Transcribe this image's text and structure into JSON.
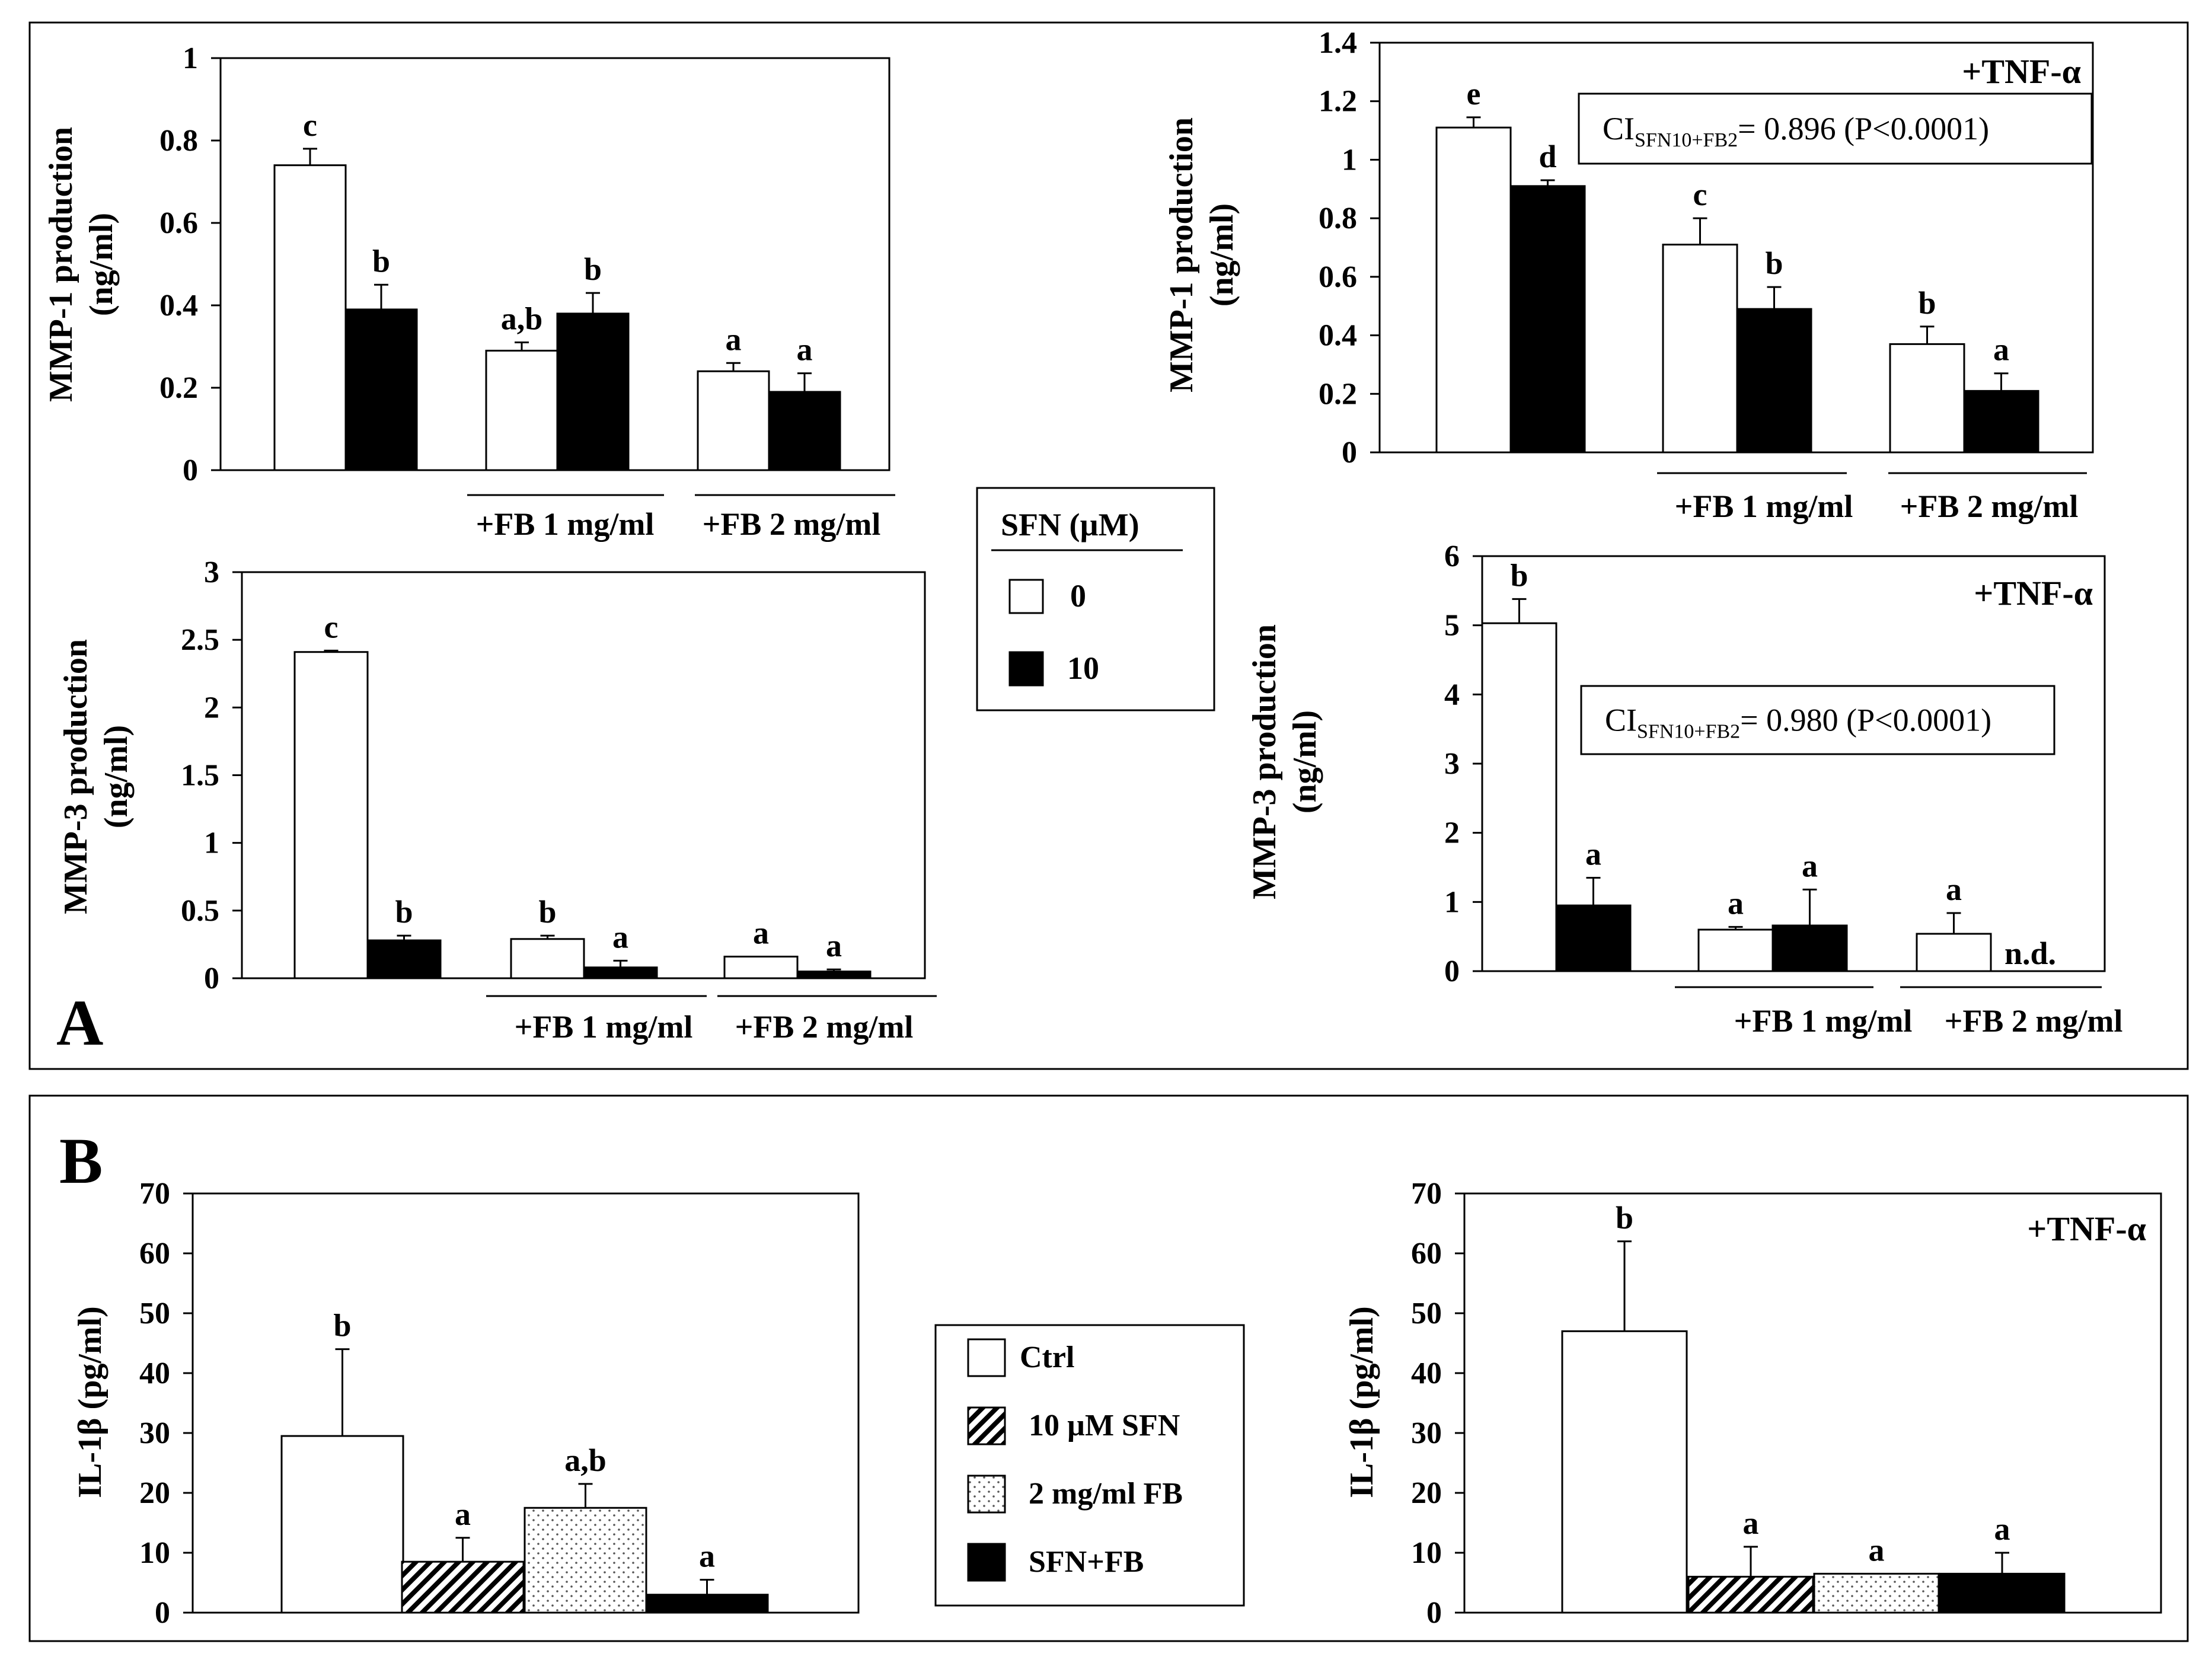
{
  "panel_labels": {
    "a": "A",
    "b": "B"
  },
  "legends": {
    "sfn": {
      "title": "SFN (µM)",
      "items": [
        {
          "label": "0",
          "fill": "white"
        },
        {
          "label": "10",
          "fill": "black"
        }
      ]
    },
    "treatment": {
      "items": [
        {
          "label": "Ctrl",
          "fill": "white"
        },
        {
          "label": "10 µM SFN",
          "fill": "hatch"
        },
        {
          "label": "2 mg/ml FB",
          "fill": "dots"
        },
        {
          "label": "SFN+FB",
          "fill": "black"
        }
      ]
    }
  },
  "chart_data": [
    {
      "id": "A1",
      "type": "bar",
      "ylabel": [
        "MMP-1 production",
        "(ng/ml)"
      ],
      "ylim": [
        0,
        1
      ],
      "yticks": [
        "0",
        "0.2",
        "0.4",
        "0.6",
        "0.8",
        "1"
      ],
      "ytick_values": [
        0,
        0.2,
        0.4,
        0.6,
        0.8,
        1
      ],
      "series_names": [
        "SFN 0 µM",
        "SFN 10 µM"
      ],
      "groups": [
        {
          "label": "",
          "bars": [
            {
              "value": 0.74,
              "err": 0.04,
              "fill": "white",
              "letter": "c"
            },
            {
              "value": 0.39,
              "err": 0.06,
              "fill": "black",
              "letter": "b"
            }
          ]
        },
        {
          "label": "+FB 1 mg/ml",
          "bars": [
            {
              "value": 0.29,
              "err": 0.02,
              "fill": "white",
              "letter": "a,b"
            },
            {
              "value": 0.38,
              "err": 0.05,
              "fill": "black",
              "letter": "b"
            }
          ]
        },
        {
          "label": "+FB 2 mg/ml",
          "bars": [
            {
              "value": 0.24,
              "err": 0.02,
              "fill": "white",
              "letter": "a"
            },
            {
              "value": 0.19,
              "err": 0.045,
              "fill": "black",
              "letter": "a"
            }
          ]
        }
      ]
    },
    {
      "id": "A2",
      "type": "bar",
      "ylabel": [
        "MMP-1 production",
        "(ng/ml)"
      ],
      "ylim": [
        0,
        1.4
      ],
      "yticks": [
        "0",
        "0.2",
        "0.4",
        "0.6",
        "0.8",
        "1",
        "1.2",
        "1.4"
      ],
      "ytick_values": [
        0,
        0.2,
        0.4,
        0.6,
        0.8,
        1,
        1.2,
        1.4
      ],
      "annotation": "+TNF-α",
      "ci": {
        "prefix": "CI",
        "sub": "SFN10+FB2",
        "rest": "= 0.896 (P<0.0001)"
      },
      "series_names": [
        "SFN 0 µM",
        "SFN 10 µM"
      ],
      "groups": [
        {
          "label": "",
          "bars": [
            {
              "value": 1.11,
              "err": 0.035,
              "fill": "white",
              "letter": "e"
            },
            {
              "value": 0.91,
              "err": 0.02,
              "fill": "black",
              "letter": "d"
            }
          ]
        },
        {
          "label": "+FB 1 mg/ml",
          "bars": [
            {
              "value": 0.71,
              "err": 0.09,
              "fill": "white",
              "letter": "c"
            },
            {
              "value": 0.49,
              "err": 0.075,
              "fill": "black",
              "letter": "b"
            }
          ]
        },
        {
          "label": "+FB 2 mg/ml",
          "bars": [
            {
              "value": 0.37,
              "err": 0.06,
              "fill": "white",
              "letter": "b"
            },
            {
              "value": 0.21,
              "err": 0.06,
              "fill": "black",
              "letter": "a"
            }
          ]
        }
      ]
    },
    {
      "id": "A3",
      "type": "bar",
      "ylabel": [
        "MMP-3 production",
        "(ng/ml)"
      ],
      "ylim": [
        0,
        3
      ],
      "yticks": [
        "0",
        "0.5",
        "1",
        "1.5",
        "2",
        "2.5",
        "3"
      ],
      "ytick_values": [
        0,
        0.5,
        1,
        1.5,
        2,
        2.5,
        3
      ],
      "series_names": [
        "SFN 0 µM",
        "SFN 10 µM"
      ],
      "groups": [
        {
          "label": "",
          "bars": [
            {
              "value": 2.41,
              "err": 0.01,
              "fill": "white",
              "letter": "c"
            },
            {
              "value": 0.28,
              "err": 0.035,
              "fill": "black",
              "letter": "b"
            }
          ]
        },
        {
          "label": "+FB 1 mg/ml",
          "bars": [
            {
              "value": 0.29,
              "err": 0.025,
              "fill": "white",
              "letter": "b"
            },
            {
              "value": 0.08,
              "err": 0.05,
              "fill": "black",
              "letter": "a"
            }
          ]
        },
        {
          "label": "+FB 2 mg/ml",
          "bars": [
            {
              "value": 0.16,
              "err": 0.0,
              "fill": "white",
              "letter": "a"
            },
            {
              "value": 0.05,
              "err": 0.015,
              "fill": "black",
              "letter": "a"
            }
          ]
        }
      ]
    },
    {
      "id": "A4",
      "type": "bar",
      "ylabel": [
        "MMP-3 production",
        "(ng/ml)"
      ],
      "ylim": [
        0,
        6
      ],
      "yticks": [
        "0",
        "1",
        "2",
        "3",
        "4",
        "5",
        "6"
      ],
      "ytick_values": [
        0,
        1,
        2,
        3,
        4,
        5,
        6
      ],
      "annotation": "+TNF-α",
      "ci": {
        "prefix": "CI",
        "sub": "SFN10+FB2",
        "rest": "= 0.980 (P<0.0001)"
      },
      "series_names": [
        "SFN 0 µM",
        "SFN 10 µM"
      ],
      "groups": [
        {
          "label": "",
          "bars": [
            {
              "value": 5.03,
              "err": 0.35,
              "fill": "white",
              "letter": "b"
            },
            {
              "value": 0.95,
              "err": 0.4,
              "fill": "black",
              "letter": "a"
            }
          ]
        },
        {
          "label": "+FB 1 mg/ml",
          "bars": [
            {
              "value": 0.6,
              "err": 0.04,
              "fill": "white",
              "letter": "a"
            },
            {
              "value": 0.66,
              "err": 0.52,
              "fill": "black",
              "letter": "a"
            }
          ]
        },
        {
          "label": "+FB 2 mg/ml",
          "bars": [
            {
              "value": 0.54,
              "err": 0.3,
              "fill": "white",
              "letter": "a"
            },
            {
              "value": 0.0,
              "err": 0,
              "fill": "black",
              "letter": "n.d."
            }
          ]
        }
      ]
    },
    {
      "id": "B1",
      "type": "bar",
      "ylabel": [
        "IL-1β (pg/ml)"
      ],
      "ylim": [
        0,
        70
      ],
      "yticks": [
        "0",
        "10",
        "20",
        "30",
        "40",
        "50",
        "60",
        "70"
      ],
      "ytick_values": [
        0,
        10,
        20,
        30,
        40,
        50,
        60,
        70
      ],
      "series_names": [
        "Ctrl",
        "10 µM SFN",
        "2 mg/ml FB",
        "SFN+FB"
      ],
      "groups": [
        {
          "label": "",
          "bars": [
            {
              "value": 29.5,
              "err": 14.5,
              "fill": "white",
              "letter": "b"
            },
            {
              "value": 8.5,
              "err": 4,
              "fill": "hatch",
              "letter": "a"
            },
            {
              "value": 17.5,
              "err": 4,
              "fill": "dots",
              "letter": "a,b"
            },
            {
              "value": 3,
              "err": 2.5,
              "fill": "black",
              "letter": "a"
            }
          ]
        }
      ]
    },
    {
      "id": "B2",
      "type": "bar",
      "ylabel": [
        "IL-1β (pg/ml)"
      ],
      "ylim": [
        0,
        70
      ],
      "yticks": [
        "0",
        "10",
        "20",
        "30",
        "40",
        "50",
        "60",
        "70"
      ],
      "ytick_values": [
        0,
        10,
        20,
        30,
        40,
        50,
        60,
        70
      ],
      "annotation": "+TNF-α",
      "series_names": [
        "Ctrl",
        "10 µM SFN",
        "2 mg/ml FB",
        "SFN+FB"
      ],
      "groups": [
        {
          "label": "",
          "bars": [
            {
              "value": 47,
              "err": 15,
              "fill": "white",
              "letter": "b"
            },
            {
              "value": 6,
              "err": 5,
              "fill": "hatch",
              "letter": "a"
            },
            {
              "value": 6.5,
              "err": 0,
              "fill": "dots",
              "letter": "a"
            },
            {
              "value": 6.5,
              "err": 3.5,
              "fill": "black",
              "letter": "a"
            }
          ]
        }
      ]
    }
  ]
}
